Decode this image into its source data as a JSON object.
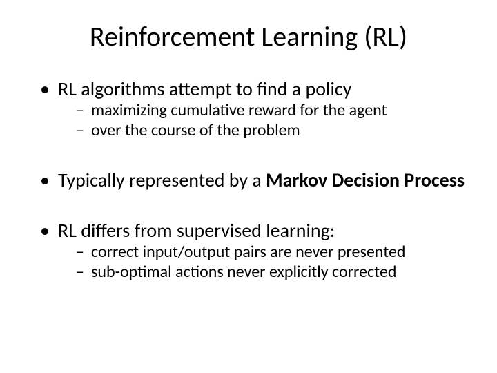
{
  "slide": {
    "title": "Reinforcement Learning (RL)",
    "bullets": [
      {
        "text": "RL algorithms attempt to find a policy",
        "sub": [
          "maximizing cumulative reward for the agent",
          "over the course of the problem"
        ]
      },
      {
        "text_prefix": "Typically represented by a ",
        "text_bold": "Markov Decision Process",
        "sub": []
      },
      {
        "text": "RL differs from supervised learning:",
        "sub": [
          "correct input/output pairs are never presented",
          "sub-optimal actions never explicitly corrected"
        ]
      }
    ],
    "colors": {
      "background": "#ffffff",
      "text": "#000000"
    },
    "fontsizes": {
      "title": 40,
      "level1": 28,
      "level2": 24
    }
  }
}
